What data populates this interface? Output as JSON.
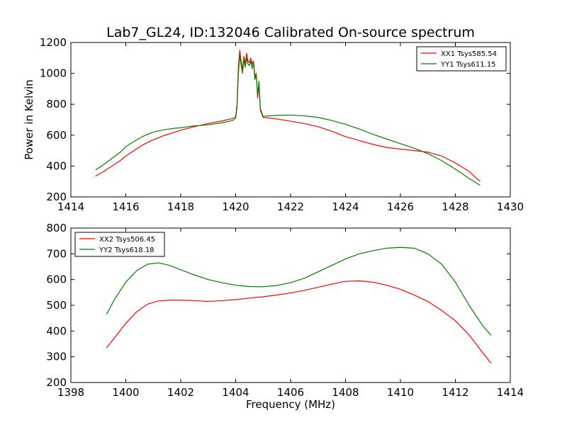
{
  "figure": {
    "title": "Lab7_GL24, ID:132046 Calibrated On-source spectrum"
  },
  "chart_data": [
    {
      "type": "line",
      "title": "Lab7_GL24, ID:132046 Calibrated On-source spectrum",
      "xlabel": "",
      "ylabel": "Power in Kelvin",
      "xlim": [
        1414,
        1430
      ],
      "ylim": [
        200,
        1200
      ],
      "xticks": [
        1414,
        1416,
        1418,
        1420,
        1422,
        1424,
        1426,
        1428,
        1430
      ],
      "yticks": [
        200,
        400,
        600,
        800,
        1000,
        1200
      ],
      "legend_position": "top-right",
      "grid": false,
      "series": [
        {
          "name": "XX1 Tsys585.54",
          "color": "#ff0000",
          "points": [
            [
              1414.9,
              335
            ],
            [
              1415.2,
              365
            ],
            [
              1415.5,
              400
            ],
            [
              1415.8,
              435
            ],
            [
              1416.0,
              465
            ],
            [
              1416.3,
              500
            ],
            [
              1416.6,
              535
            ],
            [
              1417.0,
              570
            ],
            [
              1417.4,
              598
            ],
            [
              1417.8,
              620
            ],
            [
              1418.0,
              632
            ],
            [
              1418.5,
              655
            ],
            [
              1419.0,
              675
            ],
            [
              1419.5,
              692
            ],
            [
              1419.9,
              708
            ],
            [
              1420.0,
              720
            ],
            [
              1420.05,
              800
            ],
            [
              1420.1,
              1050
            ],
            [
              1420.15,
              1150
            ],
            [
              1420.2,
              1080
            ],
            [
              1420.25,
              1020
            ],
            [
              1420.3,
              1110
            ],
            [
              1420.35,
              1060
            ],
            [
              1420.4,
              1130
            ],
            [
              1420.45,
              1080
            ],
            [
              1420.5,
              1070
            ],
            [
              1420.55,
              1100
            ],
            [
              1420.6,
              1060
            ],
            [
              1420.65,
              1080
            ],
            [
              1420.7,
              980
            ],
            [
              1420.75,
              1000
            ],
            [
              1420.8,
              840
            ],
            [
              1420.85,
              930
            ],
            [
              1420.9,
              760
            ],
            [
              1421.0,
              715
            ],
            [
              1421.5,
              705
            ],
            [
              1422.0,
              690
            ],
            [
              1422.5,
              675
            ],
            [
              1423.0,
              655
            ],
            [
              1423.5,
              625
            ],
            [
              1424.0,
              590
            ],
            [
              1424.5,
              565
            ],
            [
              1425.0,
              540
            ],
            [
              1425.5,
              520
            ],
            [
              1426.0,
              510
            ],
            [
              1426.5,
              500
            ],
            [
              1427.0,
              490
            ],
            [
              1427.5,
              465
            ],
            [
              1428.0,
              420
            ],
            [
              1428.5,
              365
            ],
            [
              1428.9,
              300
            ]
          ]
        },
        {
          "name": "YY1 Tsys611.15",
          "color": "#008000",
          "points": [
            [
              1414.9,
              375
            ],
            [
              1415.2,
              410
            ],
            [
              1415.5,
              450
            ],
            [
              1415.8,
              490
            ],
            [
              1416.0,
              525
            ],
            [
              1416.3,
              560
            ],
            [
              1416.6,
              590
            ],
            [
              1417.0,
              620
            ],
            [
              1417.4,
              635
            ],
            [
              1417.8,
              645
            ],
            [
              1418.0,
              648
            ],
            [
              1418.5,
              660
            ],
            [
              1419.0,
              667
            ],
            [
              1419.5,
              680
            ],
            [
              1419.9,
              695
            ],
            [
              1420.0,
              710
            ],
            [
              1420.05,
              780
            ],
            [
              1420.1,
              1000
            ],
            [
              1420.15,
              1120
            ],
            [
              1420.2,
              1050
            ],
            [
              1420.25,
              1000
            ],
            [
              1420.3,
              1090
            ],
            [
              1420.35,
              1040
            ],
            [
              1420.4,
              1100
            ],
            [
              1420.45,
              1060
            ],
            [
              1420.5,
              1050
            ],
            [
              1420.55,
              1080
            ],
            [
              1420.6,
              1030
            ],
            [
              1420.65,
              1070
            ],
            [
              1420.7,
              960
            ],
            [
              1420.75,
              990
            ],
            [
              1420.8,
              860
            ],
            [
              1420.85,
              950
            ],
            [
              1420.9,
              770
            ],
            [
              1421.0,
              722
            ],
            [
              1421.5,
              728
            ],
            [
              1422.0,
              730
            ],
            [
              1422.5,
              725
            ],
            [
              1423.0,
              715
            ],
            [
              1423.5,
              695
            ],
            [
              1424.0,
              670
            ],
            [
              1424.5,
              640
            ],
            [
              1425.0,
              605
            ],
            [
              1425.5,
              575
            ],
            [
              1426.0,
              545
            ],
            [
              1426.5,
              515
            ],
            [
              1427.0,
              480
            ],
            [
              1427.5,
              435
            ],
            [
              1428.0,
              380
            ],
            [
              1428.5,
              320
            ],
            [
              1428.9,
              275
            ]
          ]
        }
      ]
    },
    {
      "type": "line",
      "title": "",
      "xlabel": "Frequency (MHz)",
      "ylabel": "",
      "xlim": [
        1398,
        1414
      ],
      "ylim": [
        200,
        800
      ],
      "xticks": [
        1398,
        1400,
        1402,
        1404,
        1406,
        1408,
        1410,
        1412,
        1414
      ],
      "yticks": [
        200,
        300,
        400,
        500,
        600,
        700,
        800
      ],
      "legend_position": "top-left",
      "grid": false,
      "series": [
        {
          "name": "XX2 Tsys506.45",
          "color": "#ff0000",
          "points": [
            [
              1399.3,
              335
            ],
            [
              1399.6,
              375
            ],
            [
              1400.0,
              430
            ],
            [
              1400.4,
              475
            ],
            [
              1400.8,
              505
            ],
            [
              1401.2,
              517
            ],
            [
              1401.6,
              520
            ],
            [
              1402.0,
              520
            ],
            [
              1402.5,
              518
            ],
            [
              1403.0,
              515
            ],
            [
              1403.5,
              518
            ],
            [
              1404.0,
              522
            ],
            [
              1404.5,
              528
            ],
            [
              1405.0,
              533
            ],
            [
              1405.5,
              540
            ],
            [
              1406.0,
              548
            ],
            [
              1406.5,
              558
            ],
            [
              1407.0,
              570
            ],
            [
              1407.5,
              582
            ],
            [
              1408.0,
              593
            ],
            [
              1408.5,
              595
            ],
            [
              1409.0,
              590
            ],
            [
              1409.5,
              578
            ],
            [
              1410.0,
              562
            ],
            [
              1410.5,
              540
            ],
            [
              1411.0,
              515
            ],
            [
              1411.5,
              480
            ],
            [
              1412.0,
              440
            ],
            [
              1412.5,
              385
            ],
            [
              1413.0,
              315
            ],
            [
              1413.3,
              275
            ]
          ]
        },
        {
          "name": "YY2 Tsys618.18",
          "color": "#008000",
          "points": [
            [
              1399.3,
              465
            ],
            [
              1399.6,
              525
            ],
            [
              1400.0,
              590
            ],
            [
              1400.4,
              635
            ],
            [
              1400.8,
              660
            ],
            [
              1401.2,
              665
            ],
            [
              1401.6,
              655
            ],
            [
              1402.0,
              638
            ],
            [
              1402.5,
              618
            ],
            [
              1403.0,
              600
            ],
            [
              1403.5,
              588
            ],
            [
              1404.0,
              578
            ],
            [
              1404.5,
              573
            ],
            [
              1405.0,
              572
            ],
            [
              1405.5,
              577
            ],
            [
              1406.0,
              588
            ],
            [
              1406.5,
              605
            ],
            [
              1407.0,
              630
            ],
            [
              1407.5,
              655
            ],
            [
              1408.0,
              680
            ],
            [
              1408.5,
              700
            ],
            [
              1409.0,
              712
            ],
            [
              1409.5,
              722
            ],
            [
              1410.0,
              725
            ],
            [
              1410.5,
              722
            ],
            [
              1411.0,
              700
            ],
            [
              1411.5,
              660
            ],
            [
              1412.0,
              590
            ],
            [
              1412.5,
              500
            ],
            [
              1413.0,
              420
            ],
            [
              1413.3,
              383
            ]
          ]
        }
      ]
    }
  ]
}
